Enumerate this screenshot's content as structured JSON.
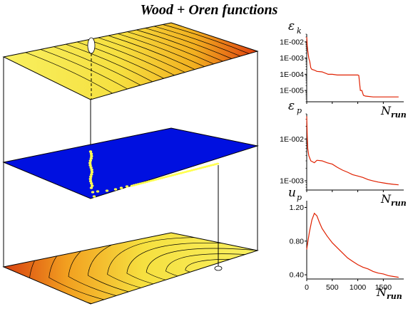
{
  "title": "Wood + Oren functions",
  "colors": {
    "surface_light": "#f8f060",
    "surface_mid": "#f6d030",
    "surface_dark": "#e05010",
    "plane_blue": "#0010e0",
    "path_yellow": "#ffff50",
    "curve_red": "#e02000"
  },
  "chart_data": [
    {
      "type": "surface",
      "description_layers": [
        "top contour plane",
        "blue path plane",
        "bottom contour plane"
      ]
    },
    {
      "type": "line",
      "ylabel": "ε_k",
      "ylabel_sym": "ε",
      "ylabel_sub": "k",
      "xlabel": "N_run",
      "xlabel_sym": "N",
      "xlabel_sub": "run",
      "yscale": "log",
      "ylim": [
        2e-06,
        0.03
      ],
      "yticks": [
        "1E-002",
        "1E-003",
        "1E-004",
        "1E-005"
      ],
      "yticks_values": [
        0.01,
        0.001,
        0.0001,
        1e-05
      ],
      "xlim": [
        0,
        1900
      ],
      "x": [
        0,
        5,
        10,
        15,
        20,
        40,
        60,
        80,
        100,
        150,
        200,
        300,
        420,
        500,
        600,
        700,
        800,
        900,
        1000,
        1020,
        1050,
        1080,
        1110,
        1150,
        1300,
        1500,
        1700,
        1800
      ],
      "y": [
        0.02,
        0.012,
        0.006,
        0.004,
        0.003,
        0.001,
        0.0006,
        0.00025,
        0.0002,
        0.00018,
        0.00015,
        0.00014,
        0.0001,
        0.0001,
        9e-05,
        9e-05,
        9e-05,
        9e-05,
        9e-05,
        8.5e-05,
        1e-05,
        1e-05,
        5e-06,
        4.5e-06,
        4e-06,
        4e-06,
        4e-06,
        4e-06
      ]
    },
    {
      "type": "line",
      "ylabel": "ε_p",
      "ylabel_sym": "ε",
      "ylabel_sub": "p",
      "xlabel": "N_run",
      "xlabel_sym": "N",
      "xlabel_sub": "run",
      "yscale": "log",
      "ylim": [
        0.0006,
        0.04
      ],
      "yticks": [
        "1E-002",
        "1E-003"
      ],
      "yticks_values": [
        0.01,
        0.001
      ],
      "xlim": [
        0,
        1900
      ],
      "x": [
        0,
        5,
        10,
        20,
        40,
        80,
        150,
        200,
        300,
        400,
        500,
        600,
        700,
        800,
        900,
        1000,
        1100,
        1200,
        1300,
        1400,
        1500,
        1600,
        1700,
        1800
      ],
      "y": [
        0.035,
        0.02,
        0.012,
        0.006,
        0.004,
        0.003,
        0.0027,
        0.0031,
        0.003,
        0.0027,
        0.0025,
        0.0021,
        0.0018,
        0.0016,
        0.0014,
        0.0013,
        0.0012,
        0.00107,
        0.00099,
        0.00093,
        0.00089,
        0.00085,
        0.00082,
        0.0008
      ]
    },
    {
      "type": "line",
      "ylabel": "u_p",
      "ylabel_sym": "u",
      "ylabel_sub": "p",
      "xlabel": "N_run",
      "xlabel_sym": "N",
      "xlabel_sub": "run",
      "ylim": [
        0.35,
        1.28
      ],
      "yticks": [
        "1.20",
        "0.80",
        "0.40"
      ],
      "yticks_values": [
        1.2,
        0.8,
        0.4
      ],
      "xlim": [
        0,
        1900
      ],
      "xticks": [
        "0",
        "500",
        "1000",
        "1500"
      ],
      "xticks_values": [
        0,
        500,
        1000,
        1500
      ],
      "x": [
        0,
        20,
        50,
        100,
        150,
        200,
        250,
        300,
        400,
        500,
        600,
        700,
        800,
        900,
        1000,
        1100,
        1200,
        1300,
        1400,
        1500,
        1600,
        1700,
        1800
      ],
      "y": [
        0.7,
        0.78,
        0.9,
        1.05,
        1.13,
        1.1,
        1.02,
        0.95,
        0.86,
        0.78,
        0.72,
        0.66,
        0.6,
        0.56,
        0.52,
        0.49,
        0.47,
        0.44,
        0.42,
        0.41,
        0.39,
        0.38,
        0.37
      ]
    }
  ]
}
